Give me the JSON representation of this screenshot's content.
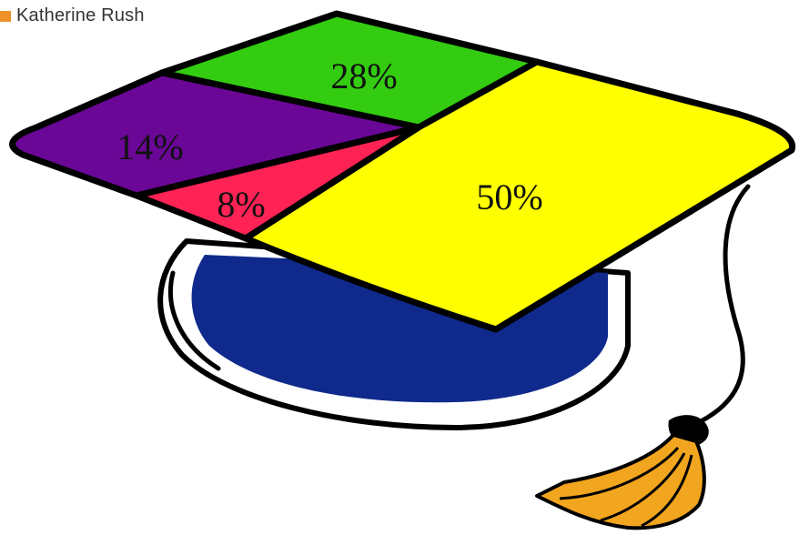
{
  "legend": {
    "label": "Katherine Rush",
    "color": "#f0922a"
  },
  "chart_data": {
    "type": "pie",
    "style": "graduation-cap",
    "slices": [
      {
        "key": "green",
        "label": "28%",
        "value": 28,
        "color": "#33cc11"
      },
      {
        "key": "purple",
        "label": "14%",
        "value": 14,
        "color": "#6a0796"
      },
      {
        "key": "red",
        "label": "8%",
        "value": 8,
        "color": "#ff2255"
      },
      {
        "key": "yellow",
        "label": "50%",
        "value": 50,
        "color": "#ffff00"
      }
    ],
    "cap_color": "#0f2a8c",
    "tassel_color": "#f2a51e"
  }
}
